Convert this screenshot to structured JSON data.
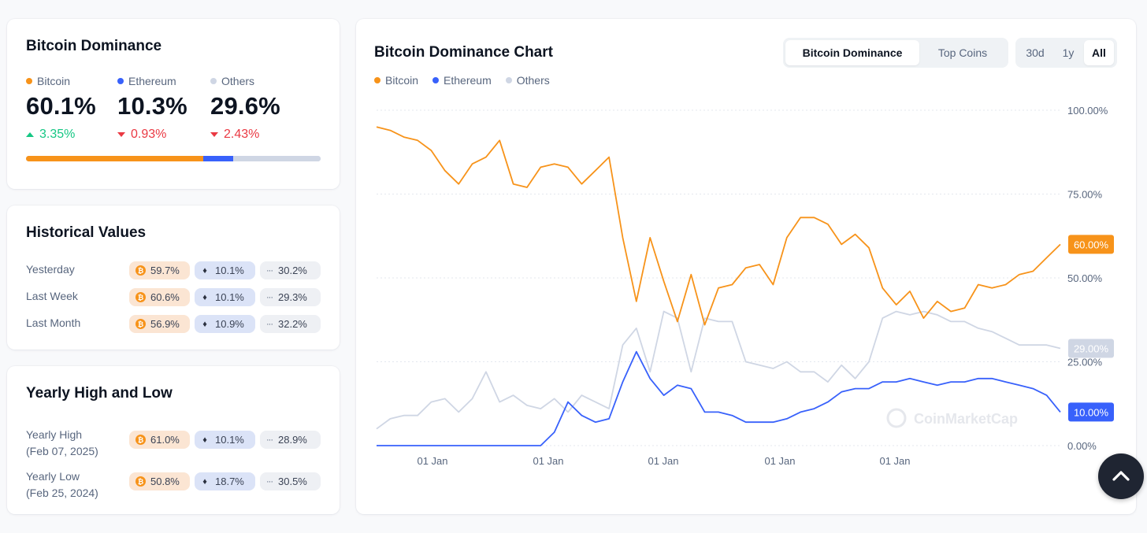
{
  "dominance": {
    "title": "Bitcoin Dominance",
    "items": [
      {
        "label": "Bitcoin",
        "value": "60.1%",
        "change": "3.35%",
        "direction": "up",
        "color": "#f7931a",
        "share": 60.1
      },
      {
        "label": "Ethereum",
        "value": "10.3%",
        "change": "0.93%",
        "direction": "down",
        "color": "#3861fb",
        "share": 10.3
      },
      {
        "label": "Others",
        "value": "29.6%",
        "change": "2.43%",
        "direction": "down",
        "color": "#cfd6e4",
        "share": 29.6
      }
    ]
  },
  "historical": {
    "title": "Historical Values",
    "rows": [
      {
        "label": "Yesterday",
        "btc": "59.7%",
        "eth": "10.1%",
        "others": "30.2%"
      },
      {
        "label": "Last Week",
        "btc": "60.6%",
        "eth": "10.1%",
        "others": "29.3%"
      },
      {
        "label": "Last Month",
        "btc": "56.9%",
        "eth": "10.9%",
        "others": "32.2%"
      }
    ]
  },
  "yearly": {
    "title": "Yearly High and Low",
    "rows": [
      {
        "label": "Yearly High",
        "date": "(Feb 07, 2025)",
        "btc": "61.0%",
        "eth": "10.1%",
        "others": "28.9%"
      },
      {
        "label": "Yearly Low",
        "date": "(Feb 25, 2024)",
        "btc": "50.8%",
        "eth": "18.7%",
        "others": "30.5%"
      }
    ]
  },
  "chart": {
    "title": "Bitcoin Dominance Chart",
    "tabs": [
      "Bitcoin Dominance",
      "Top Coins"
    ],
    "active_tab": "Bitcoin Dominance",
    "ranges": [
      "30d",
      "1y",
      "All"
    ],
    "active_range": "All",
    "legend": [
      "Bitcoin",
      "Ethereum",
      "Others"
    ],
    "watermark": "CoinMarketCap",
    "x_ticks": [
      "01 Jan",
      "01 Jan",
      "01 Jan",
      "01 Jan",
      "01 Jan"
    ],
    "y_ticks": [
      "100.00%",
      "75.00%",
      "50.00%",
      "25.00%",
      "0.00%"
    ],
    "end_labels": {
      "bitcoin": "60.00%",
      "others": "29.00%",
      "ethereum": "10.00%"
    },
    "colors": {
      "bitcoin": "#f7931a",
      "ethereum": "#3861fb",
      "others": "#cfd6e4"
    }
  },
  "chart_data": {
    "type": "line",
    "ylim": [
      0,
      100
    ],
    "x": [
      0,
      2,
      4,
      6,
      8,
      10,
      12,
      14,
      16,
      18,
      20,
      22,
      24,
      26,
      28,
      30,
      32,
      34,
      36,
      38,
      40,
      42,
      44,
      46,
      48,
      50,
      52,
      54,
      56,
      58,
      60,
      62,
      64,
      66,
      68,
      70,
      72,
      74,
      76,
      78,
      80,
      82,
      84,
      86,
      88,
      90,
      92,
      94,
      96,
      98,
      100
    ],
    "series": [
      {
        "name": "Bitcoin",
        "values": [
          95,
          94,
          92,
          91,
          88,
          82,
          78,
          84,
          86,
          91,
          78,
          77,
          83,
          84,
          83,
          78,
          82,
          86,
          62,
          43,
          62,
          49,
          37,
          51,
          36,
          47,
          48,
          53,
          54,
          48,
          62,
          68,
          68,
          66,
          60,
          63,
          59,
          47,
          42,
          46,
          38,
          43,
          40,
          41,
          48,
          47,
          48,
          51,
          52,
          56,
          60
        ]
      },
      {
        "name": "Ethereum",
        "values": [
          0,
          0,
          0,
          0,
          0,
          0,
          0,
          0,
          0,
          0,
          0,
          0,
          0,
          4,
          13,
          9,
          7,
          8,
          19,
          28,
          20,
          15,
          18,
          17,
          10,
          10,
          9,
          7,
          7,
          7,
          8,
          10,
          11,
          13,
          16,
          17,
          17,
          19,
          19,
          20,
          19,
          18,
          19,
          19,
          20,
          20,
          19,
          18,
          17,
          15,
          10
        ]
      },
      {
        "name": "Others",
        "values": [
          5,
          8,
          9,
          9,
          13,
          14,
          10,
          14,
          22,
          13,
          15,
          12,
          11,
          14,
          10,
          15,
          13,
          11,
          30,
          35,
          22,
          40,
          38,
          22,
          38,
          37,
          37,
          25,
          24,
          23,
          25,
          22,
          22,
          19,
          24,
          20,
          25,
          38,
          40,
          39,
          40,
          39,
          37,
          37,
          35,
          34,
          32,
          30,
          30,
          30,
          29
        ]
      }
    ]
  }
}
